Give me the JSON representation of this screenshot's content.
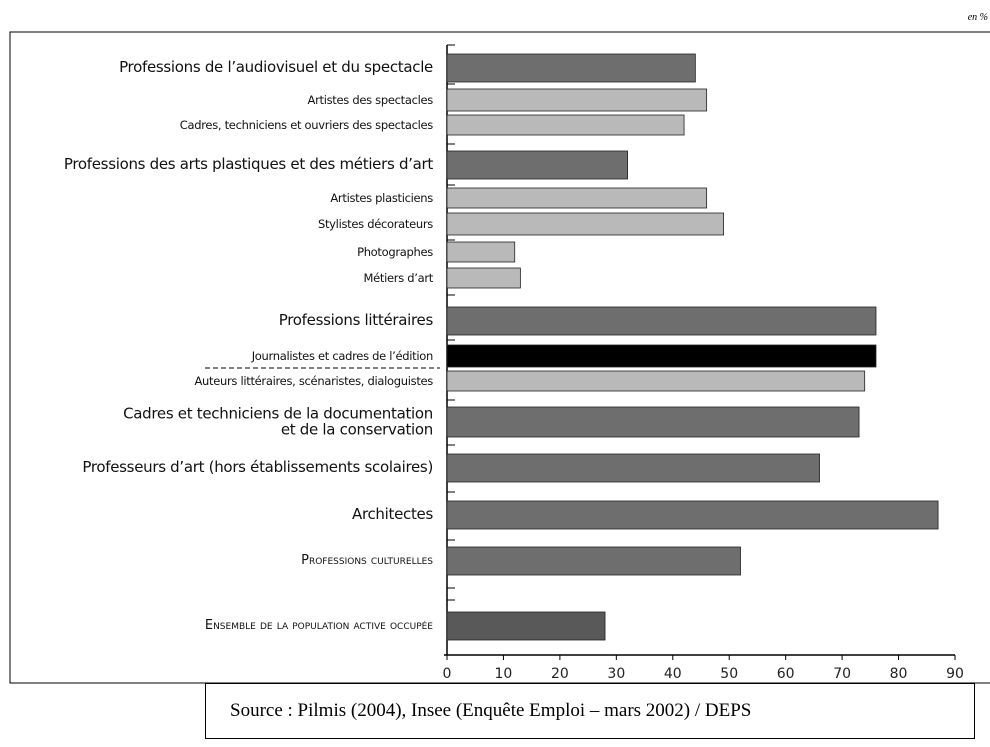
{
  "chart_data": {
    "type": "barh",
    "unit_note": "en %",
    "source": "Source : Pilmis (2004), Insee (Enquête Emploi – mars 2002) / DEPS",
    "categories": [
      "Professions de l’audiovisuel et du spectacle",
      "Artistes des spectacles",
      "Cadres, techniciens et ouvriers des spectacles",
      "Professions des arts plastiques et des métiers d’art",
      "Artistes plasticiens",
      "Stylistes décorateurs",
      "Photographes",
      "Métiers d’art",
      "Professions littéraires",
      "Journalistes et cadres de l’édition",
      "Auteurs littéraires, scénaristes, dialoguistes",
      "Cadres et techniciens de la documentation\net de la conservation",
      "Professeurs d’art (hors établissements scolaires)",
      "Architectes",
      "Professions culturelles",
      "Ensemble de la population active occupée"
    ],
    "values": [
      44,
      46,
      42,
      32,
      46,
      49,
      12,
      13,
      76,
      76,
      74,
      73,
      66,
      87,
      52,
      28
    ],
    "colors": [
      "#6e6e6e",
      "#b9b9b9",
      "#b9b9b9",
      "#6e6e6e",
      "#b9b9b9",
      "#b9b9b9",
      "#b9b9b9",
      "#b9b9b9",
      "#6e6e6e",
      "#000000",
      "#b9b9b9",
      "#6e6e6e",
      "#6e6e6e",
      "#6e6e6e",
      "#6e6e6e",
      "#595959"
    ],
    "xlim": [
      0,
      90
    ],
    "xticks": [
      0,
      10,
      20,
      30,
      40,
      50,
      60,
      70,
      80,
      90
    ]
  }
}
